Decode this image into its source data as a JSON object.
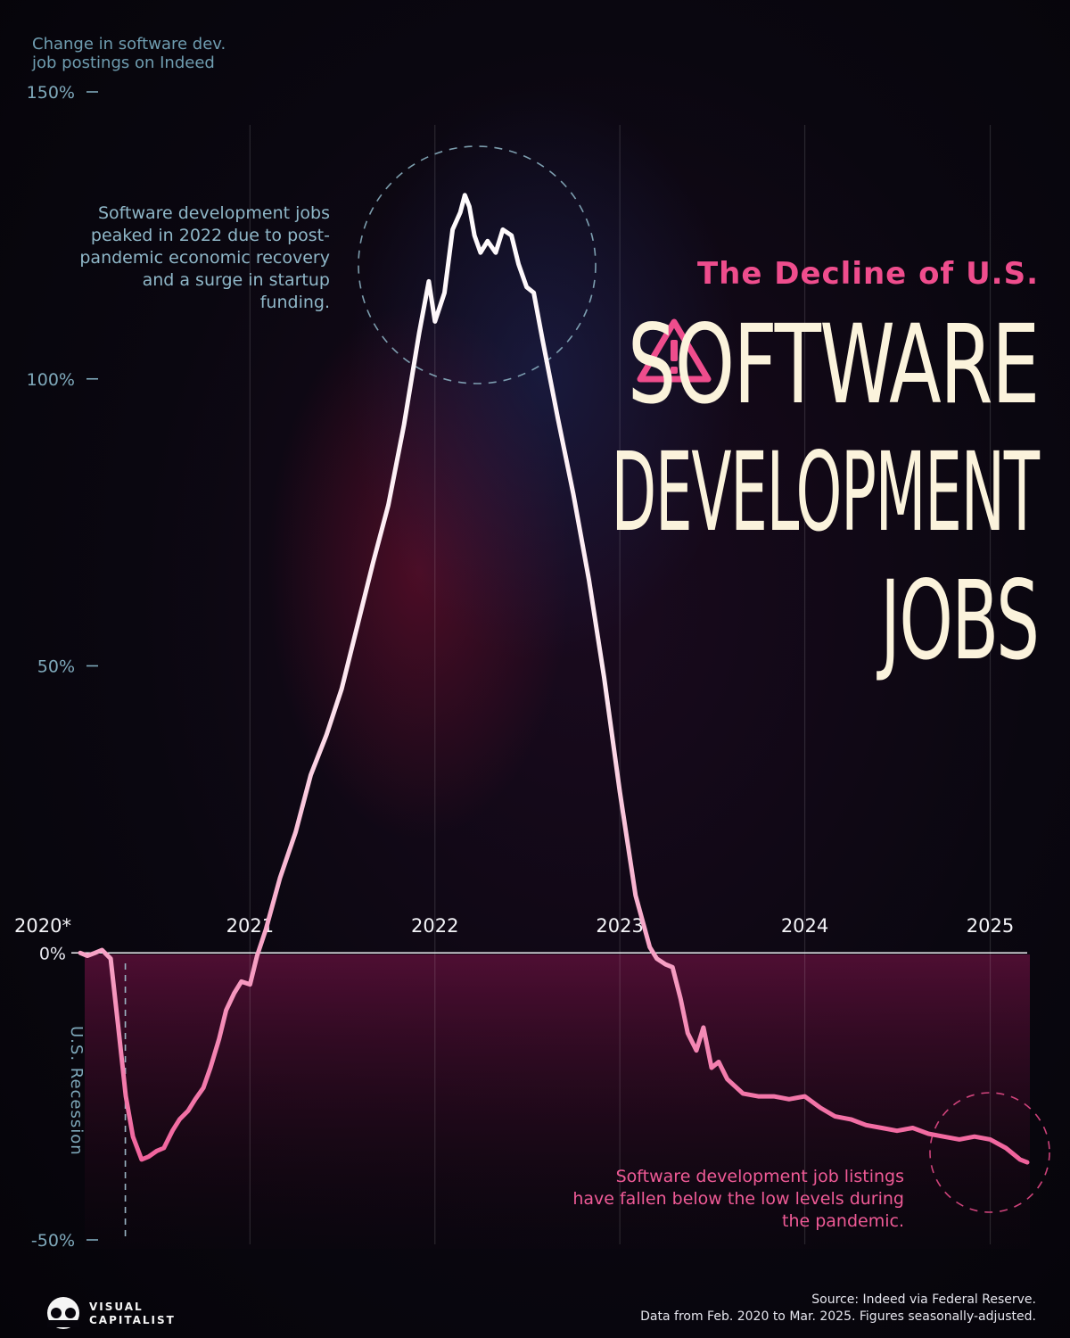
{
  "title": {
    "subtitle": "The Decline of U.S.",
    "line1": "SOFTWARE",
    "line2": "DEVELOPMENT",
    "line3": "JOBS",
    "warning_icon": "warning-triangle-icon"
  },
  "annotations": {
    "peak": "Software development jobs peaked in 2022 due to post-pandemic economic recovery and a surge in startup funding.",
    "low": "Software development job listings have fallen below the low levels during the pandemic.",
    "recession": "U.S. Recession"
  },
  "footer": {
    "source_line1": "Source: Indeed via Federal Reserve.",
    "source_line2": "Data from Feb. 2020 to Mar. 2025. Figures seasonally-adjusted.",
    "brand_line1": "VISUAL",
    "brand_line2": "CAPITALIST"
  },
  "colors": {
    "accent_pink": "#ef4d8d",
    "line_top": "#ffffff",
    "line_bottom": "#f0559a",
    "annotation_blue": "#8fb7c8",
    "title_cream": "#fbf3dc"
  },
  "chart_data": {
    "type": "line",
    "ylabel": "Change in software dev. job postings on Indeed",
    "ylim": [
      -50,
      150
    ],
    "yticks": [
      {
        "value": 150,
        "label": "150%"
      },
      {
        "value": 100,
        "label": "100%"
      },
      {
        "value": 50,
        "label": "50%"
      },
      {
        "value": 0,
        "label": "0%"
      },
      {
        "value": -50,
        "label": "-50%"
      }
    ],
    "xlim": [
      "2020-02-01",
      "2025-03-15"
    ],
    "xticks": [
      {
        "date": "2020-01-01",
        "label": "2020*"
      },
      {
        "date": "2021-01-01",
        "label": "2021"
      },
      {
        "date": "2022-01-01",
        "label": "2022"
      },
      {
        "date": "2023-01-01",
        "label": "2023"
      },
      {
        "date": "2024-01-01",
        "label": "2024"
      },
      {
        "date": "2025-01-01",
        "label": "2025"
      }
    ],
    "recession_end": "2020-04-30",
    "grid": "vertical",
    "series": [
      {
        "points": [
          [
            "2020-02-01",
            0
          ],
          [
            "2020-02-15",
            -0.5
          ],
          [
            "2020-03-01",
            0
          ],
          [
            "2020-03-15",
            0.5
          ],
          [
            "2020-04-01",
            -1
          ],
          [
            "2020-04-15",
            -12
          ],
          [
            "2020-05-01",
            -25
          ],
          [
            "2020-05-15",
            -32
          ],
          [
            "2020-06-01",
            -36
          ],
          [
            "2020-06-15",
            -35.5
          ],
          [
            "2020-07-01",
            -34.5
          ],
          [
            "2020-07-15",
            -34
          ],
          [
            "2020-08-01",
            -31
          ],
          [
            "2020-08-15",
            -29
          ],
          [
            "2020-09-01",
            -27.5
          ],
          [
            "2020-09-15",
            -25.5
          ],
          [
            "2020-10-01",
            -23.5
          ],
          [
            "2020-10-15",
            -20
          ],
          [
            "2020-11-01",
            -15
          ],
          [
            "2020-11-15",
            -10
          ],
          [
            "2020-12-01",
            -7
          ],
          [
            "2020-12-15",
            -5
          ],
          [
            "2021-01-01",
            -5.5
          ],
          [
            "2021-01-15",
            -0.5
          ],
          [
            "2021-02-01",
            4
          ],
          [
            "2021-03-01",
            13
          ],
          [
            "2021-04-01",
            21
          ],
          [
            "2021-05-01",
            31
          ],
          [
            "2021-06-01",
            38
          ],
          [
            "2021-07-01",
            46
          ],
          [
            "2021-08-01",
            57
          ],
          [
            "2021-09-01",
            68
          ],
          [
            "2021-10-01",
            78
          ],
          [
            "2021-11-01",
            92
          ],
          [
            "2021-12-01",
            108
          ],
          [
            "2021-12-20",
            117
          ],
          [
            "2022-01-01",
            110
          ],
          [
            "2022-01-20",
            115
          ],
          [
            "2022-02-05",
            126
          ],
          [
            "2022-02-20",
            129
          ],
          [
            "2022-03-01",
            132
          ],
          [
            "2022-03-10",
            130
          ],
          [
            "2022-03-20",
            125
          ],
          [
            "2022-04-01",
            122
          ],
          [
            "2022-04-15",
            124
          ],
          [
            "2022-05-01",
            122
          ],
          [
            "2022-05-15",
            126
          ],
          [
            "2022-06-01",
            125
          ],
          [
            "2022-06-15",
            120
          ],
          [
            "2022-07-01",
            116
          ],
          [
            "2022-07-15",
            115
          ],
          [
            "2022-08-01",
            107
          ],
          [
            "2022-09-01",
            93
          ],
          [
            "2022-10-01",
            80
          ],
          [
            "2022-11-01",
            65
          ],
          [
            "2022-12-01",
            48
          ],
          [
            "2023-01-01",
            28
          ],
          [
            "2023-02-01",
            10
          ],
          [
            "2023-03-01",
            1
          ],
          [
            "2023-03-15",
            -1
          ],
          [
            "2023-04-01",
            -2
          ],
          [
            "2023-04-15",
            -2.5
          ],
          [
            "2023-05-01",
            -8
          ],
          [
            "2023-05-15",
            -14
          ],
          [
            "2023-06-01",
            -17
          ],
          [
            "2023-06-15",
            -13
          ],
          [
            "2023-07-01",
            -20
          ],
          [
            "2023-07-15",
            -19
          ],
          [
            "2023-08-01",
            -22
          ],
          [
            "2023-09-01",
            -24.5
          ],
          [
            "2023-10-01",
            -25
          ],
          [
            "2023-11-01",
            -25
          ],
          [
            "2023-12-01",
            -25.5
          ],
          [
            "2024-01-01",
            -25
          ],
          [
            "2024-02-01",
            -27
          ],
          [
            "2024-03-01",
            -28.5
          ],
          [
            "2024-04-01",
            -29
          ],
          [
            "2024-05-01",
            -30
          ],
          [
            "2024-06-01",
            -30.5
          ],
          [
            "2024-07-01",
            -31
          ],
          [
            "2024-08-01",
            -30.5
          ],
          [
            "2024-09-01",
            -31.5
          ],
          [
            "2024-10-01",
            -32
          ],
          [
            "2024-11-01",
            -32.5
          ],
          [
            "2024-12-01",
            -32
          ],
          [
            "2025-01-01",
            -32.5
          ],
          [
            "2025-02-01",
            -34
          ],
          [
            "2025-03-01",
            -36
          ],
          [
            "2025-03-15",
            -36.5
          ]
        ]
      }
    ]
  }
}
